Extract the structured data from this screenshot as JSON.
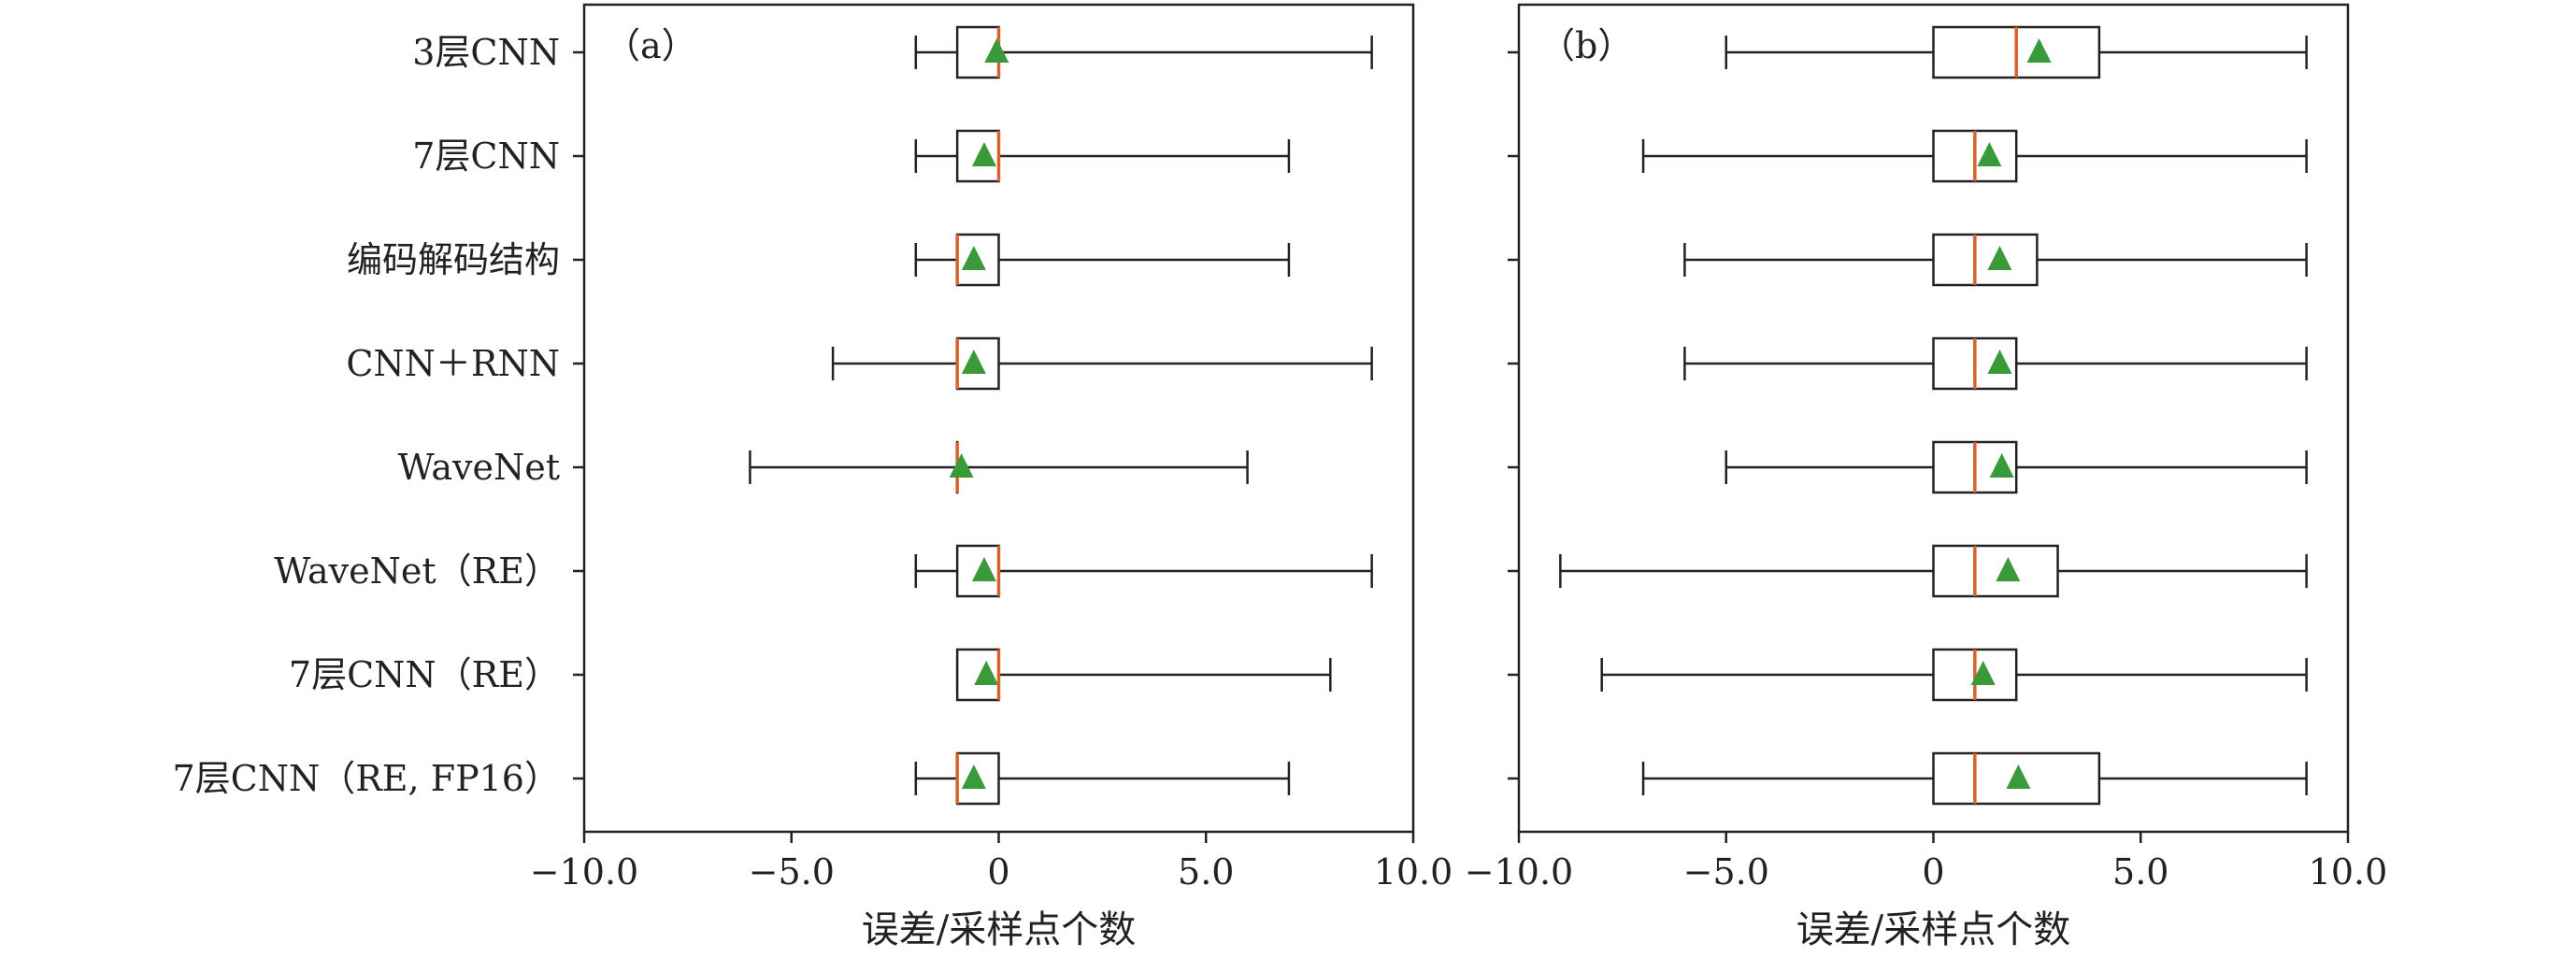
{
  "chart_data": [
    {
      "type": "boxplot",
      "panel_label": "（a）",
      "orientation": "horizontal",
      "xlabel": "误差/采样点个数",
      "xlim": [
        -10,
        10
      ],
      "xticks": [
        -10,
        -5,
        0,
        5,
        10
      ],
      "xtick_labels": [
        "−10.0",
        "−5.0",
        "0",
        "5.0",
        "10.0"
      ],
      "categories": [
        "3层CNN",
        "7层CNN",
        "编码解码结构",
        "CNN＋RNN",
        "WaveNet",
        "WaveNet（RE）",
        "7层CNN（RE）",
        "7层CNN（RE, FP16）"
      ],
      "boxes": [
        {
          "whislo": -2,
          "q1": -1,
          "med": 0,
          "q3": 0,
          "whishi": 9,
          "mean": -0.05
        },
        {
          "whislo": -2,
          "q1": -1,
          "med": 0,
          "q3": 0,
          "whishi": 7,
          "mean": -0.35
        },
        {
          "whislo": -2,
          "q1": -1,
          "med": -1,
          "q3": 0,
          "whishi": 7,
          "mean": -0.6
        },
        {
          "whislo": -4,
          "q1": -1,
          "med": -1,
          "q3": 0,
          "whishi": 9,
          "mean": -0.6
        },
        {
          "whislo": -6,
          "q1": -1,
          "med": -1,
          "q3": -1,
          "whishi": 6,
          "mean": -0.9
        },
        {
          "whislo": -2,
          "q1": -1,
          "med": 0,
          "q3": 0,
          "whishi": 9,
          "mean": -0.35
        },
        {
          "whislo": -1,
          "q1": -1,
          "med": 0,
          "q3": 0,
          "whishi": 8,
          "mean": -0.3
        },
        {
          "whislo": -2,
          "q1": -1,
          "med": -1,
          "q3": 0,
          "whishi": 7,
          "mean": -0.6
        }
      ]
    },
    {
      "type": "boxplot",
      "panel_label": "（b）",
      "orientation": "horizontal",
      "xlabel": "误差/采样点个数",
      "xlim": [
        -10,
        10
      ],
      "xticks": [
        -10,
        -5,
        0,
        5,
        10
      ],
      "xtick_labels": [
        "−10.0",
        "−5.0",
        "0",
        "5.0",
        "10.0"
      ],
      "categories": [
        "3层CNN",
        "7层CNN",
        "编码解码结构",
        "CNN＋RNN",
        "WaveNet",
        "WaveNet（RE）",
        "7层CNN（RE）",
        "7层CNN（RE, FP16）"
      ],
      "boxes": [
        {
          "whislo": -5,
          "q1": 0,
          "med": 2,
          "q3": 4,
          "whishi": 9,
          "mean": 2.55
        },
        {
          "whislo": -7,
          "q1": 0,
          "med": 1,
          "q3": 2,
          "whishi": 9,
          "mean": 1.35
        },
        {
          "whislo": -6,
          "q1": 0,
          "med": 1,
          "q3": 2.5,
          "whishi": 9,
          "mean": 1.6
        },
        {
          "whislo": -6,
          "q1": 0,
          "med": 1,
          "q3": 2,
          "whishi": 9,
          "mean": 1.6
        },
        {
          "whislo": -5,
          "q1": 0,
          "med": 1,
          "q3": 2,
          "whishi": 9,
          "mean": 1.65
        },
        {
          "whislo": -9,
          "q1": 0,
          "med": 1,
          "q3": 3,
          "whishi": 9,
          "mean": 1.8
        },
        {
          "whislo": -8,
          "q1": 0,
          "med": 1,
          "q3": 2,
          "whishi": 9,
          "mean": 1.2
        },
        {
          "whislo": -7,
          "q1": 0,
          "med": 1,
          "q3": 4,
          "whishi": 9,
          "mean": 2.05
        }
      ]
    }
  ],
  "colors": {
    "median": "#d9622b",
    "mean_marker": "#3a9a3a",
    "line": "#222222"
  }
}
